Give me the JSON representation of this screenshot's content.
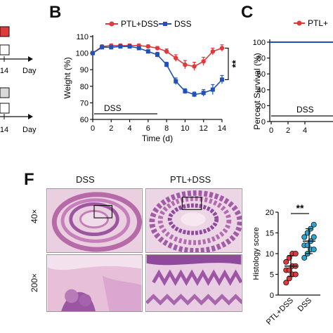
{
  "panel_letters": {
    "b": "B",
    "c": "C",
    "f": "F"
  },
  "left_fragment": {
    "day_label_1": "Day",
    "day_label_2": "Day",
    "tick_1": "14",
    "tick_2": "14"
  },
  "panel_c": {
    "ylabel": "Percent Survival (%)",
    "yticks": [
      "100",
      "80",
      "60",
      "40",
      "20",
      "0"
    ],
    "xticks": [
      "0",
      "2",
      "4"
    ],
    "legend_label": "PTL+",
    "dss_label": "DSS"
  },
  "panel_f": {
    "col_label_dss": "DSS",
    "col_label_ptl": "PTL+DSS",
    "row_label_40x": "40×",
    "row_label_200x": "200×"
  },
  "colors": {
    "red": "#e2383b",
    "blue": "#2150b8",
    "tissue_pink": "#d79bc7",
    "tissue_purple": "#8f4a9e"
  },
  "chart_data": [
    {
      "type": "line",
      "xlabel": "Time (d)",
      "ylabel": "Weight (%)",
      "xlim": [
        0,
        14
      ],
      "ylim": [
        60,
        110
      ],
      "xticks": [
        0,
        2,
        4,
        6,
        8,
        10,
        12,
        14
      ],
      "yticks": [
        60,
        70,
        80,
        90,
        100,
        110
      ],
      "legend_position": "top",
      "annotation": "DSS",
      "significance": "**",
      "x": [
        0,
        1,
        2,
        3,
        4,
        5,
        6,
        7,
        8,
        9,
        10,
        11,
        12,
        13,
        14
      ],
      "series": [
        {
          "name": "PTL+DSS",
          "color": "#e2383b",
          "values": [
            100,
            104,
            104.5,
            104.5,
            104.5,
            104.5,
            104,
            103,
            101,
            97,
            93,
            92,
            95,
            101,
            103
          ],
          "errors": [
            0.5,
            1,
            1,
            1,
            1,
            1,
            1,
            1,
            1.5,
            2,
            2.5,
            2.5,
            2.5,
            2,
            2
          ]
        },
        {
          "name": "DSS",
          "color": "#2150b8",
          "values": [
            100,
            103.5,
            103.5,
            104,
            104,
            103,
            101,
            99,
            93,
            83,
            77,
            75,
            76,
            78,
            84
          ],
          "errors": [
            0.5,
            1,
            1,
            1,
            1,
            1,
            1,
            1.5,
            1.5,
            2,
            1.5,
            1.5,
            2,
            3,
            2.5
          ]
        }
      ]
    },
    {
      "type": "scatter",
      "ylabel": "Histology score",
      "categories": [
        "PTL+DSS",
        "DSS"
      ],
      "ylim": [
        0,
        20
      ],
      "yticks": [
        0,
        5,
        10,
        15,
        20
      ],
      "significance": "**",
      "series": [
        {
          "name": "PTL+DSS",
          "color": "#e2383b",
          "mean": 7,
          "sd": 2.5,
          "values": [
            3,
            4,
            5,
            5,
            6,
            6,
            7,
            7,
            8,
            9,
            10,
            10
          ]
        },
        {
          "name": "DSS",
          "color": "#2aa6d6",
          "mean": 13,
          "sd": 3,
          "values": [
            9,
            10,
            11,
            11,
            12,
            12,
            13,
            14,
            14,
            15,
            16,
            17
          ]
        }
      ]
    }
  ]
}
